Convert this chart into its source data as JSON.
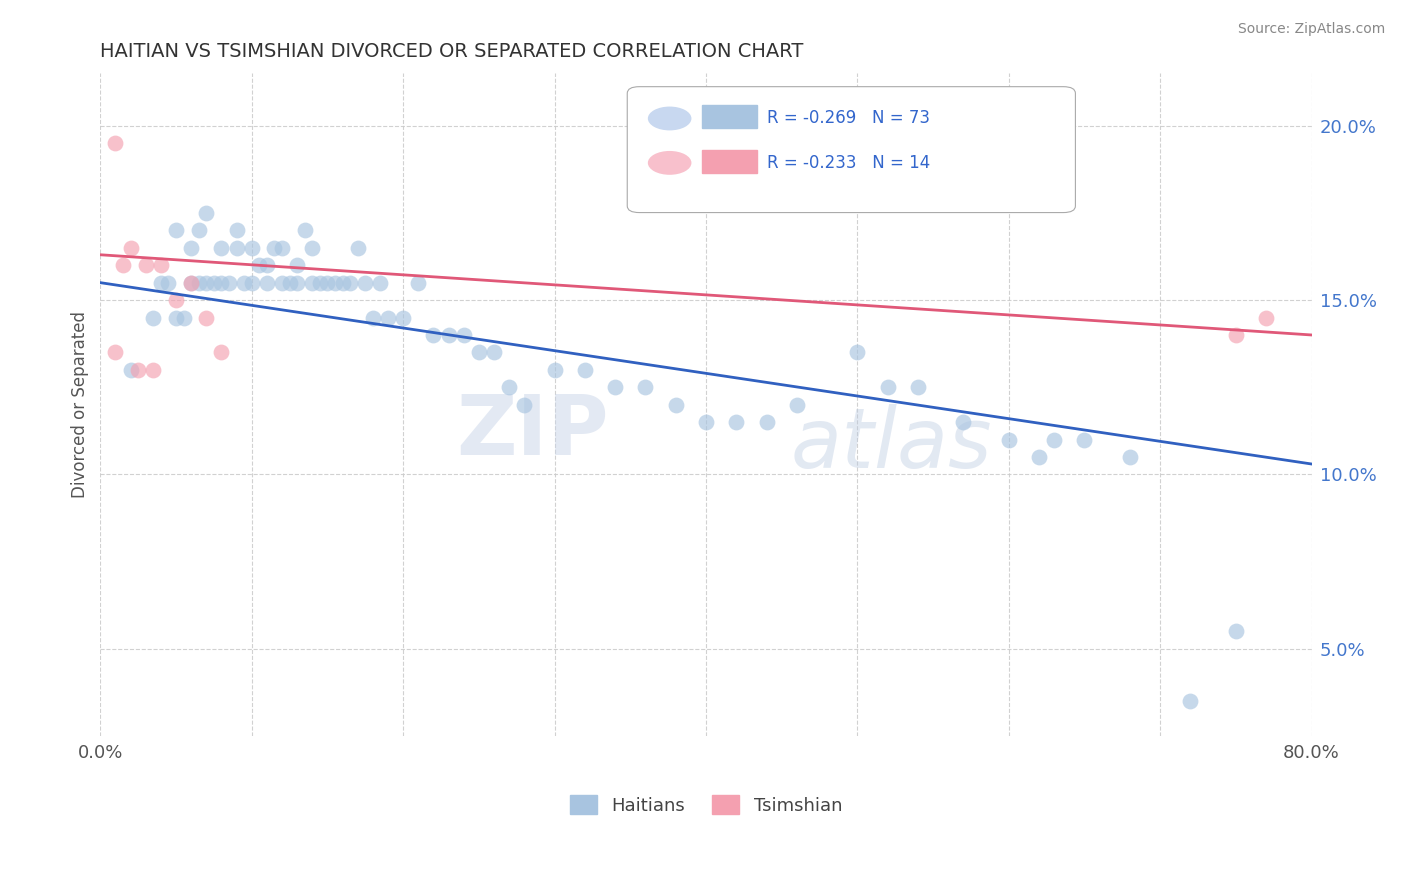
{
  "title": "HAITIAN VS TSIMSHIAN DIVORCED OR SEPARATED CORRELATION CHART",
  "source": "Source: ZipAtlas.com",
  "ylabel": "Divorced or Separated",
  "xlim": [
    0.0,
    0.8
  ],
  "ylim": [
    0.025,
    0.215
  ],
  "xticks": [
    0.0,
    0.1,
    0.2,
    0.3,
    0.4,
    0.5,
    0.6,
    0.7,
    0.8
  ],
  "xticklabels": [
    "0.0%",
    "",
    "",
    "",
    "",
    "",
    "",
    "",
    "80.0%"
  ],
  "yticks": [
    0.05,
    0.1,
    0.15,
    0.2
  ],
  "yticklabels": [
    "5.0%",
    "10.0%",
    "15.0%",
    "20.0%"
  ],
  "blue_color": "#a8c4e0",
  "pink_color": "#f4a0b0",
  "blue_line_color": "#3060c0",
  "pink_line_color": "#e05878",
  "watermark_zip": "ZIP",
  "watermark_atlas": "atlas",
  "blue_line_x0": 0.0,
  "blue_line_y0": 0.155,
  "blue_line_x1": 0.8,
  "blue_line_y1": 0.103,
  "pink_line_x0": 0.0,
  "pink_line_y0": 0.163,
  "pink_line_x1": 0.8,
  "pink_line_y1": 0.14,
  "blue_scatter_x": [
    0.02,
    0.035,
    0.04,
    0.045,
    0.05,
    0.05,
    0.055,
    0.06,
    0.06,
    0.065,
    0.065,
    0.07,
    0.07,
    0.075,
    0.08,
    0.08,
    0.085,
    0.09,
    0.09,
    0.095,
    0.1,
    0.1,
    0.105,
    0.11,
    0.11,
    0.115,
    0.12,
    0.12,
    0.125,
    0.13,
    0.13,
    0.135,
    0.14,
    0.14,
    0.145,
    0.15,
    0.155,
    0.16,
    0.165,
    0.17,
    0.175,
    0.18,
    0.185,
    0.19,
    0.2,
    0.21,
    0.22,
    0.23,
    0.24,
    0.25,
    0.26,
    0.27,
    0.28,
    0.3,
    0.32,
    0.34,
    0.36,
    0.38,
    0.4,
    0.42,
    0.44,
    0.46,
    0.5,
    0.52,
    0.54,
    0.57,
    0.6,
    0.63,
    0.65,
    0.68,
    0.72,
    0.75,
    0.62
  ],
  "blue_scatter_y": [
    0.13,
    0.145,
    0.155,
    0.155,
    0.145,
    0.17,
    0.145,
    0.155,
    0.165,
    0.155,
    0.17,
    0.155,
    0.175,
    0.155,
    0.165,
    0.155,
    0.155,
    0.17,
    0.165,
    0.155,
    0.165,
    0.155,
    0.16,
    0.16,
    0.155,
    0.165,
    0.165,
    0.155,
    0.155,
    0.16,
    0.155,
    0.17,
    0.155,
    0.165,
    0.155,
    0.155,
    0.155,
    0.155,
    0.155,
    0.165,
    0.155,
    0.145,
    0.155,
    0.145,
    0.145,
    0.155,
    0.14,
    0.14,
    0.14,
    0.135,
    0.135,
    0.125,
    0.12,
    0.13,
    0.13,
    0.125,
    0.125,
    0.12,
    0.115,
    0.115,
    0.115,
    0.12,
    0.135,
    0.125,
    0.125,
    0.115,
    0.11,
    0.11,
    0.11,
    0.105,
    0.035,
    0.055,
    0.105
  ],
  "pink_scatter_x": [
    0.01,
    0.01,
    0.015,
    0.02,
    0.025,
    0.03,
    0.035,
    0.04,
    0.05,
    0.06,
    0.07,
    0.08,
    0.75,
    0.77
  ],
  "pink_scatter_y": [
    0.195,
    0.135,
    0.16,
    0.165,
    0.13,
    0.16,
    0.13,
    0.16,
    0.15,
    0.155,
    0.145,
    0.135,
    0.14,
    0.145
  ]
}
